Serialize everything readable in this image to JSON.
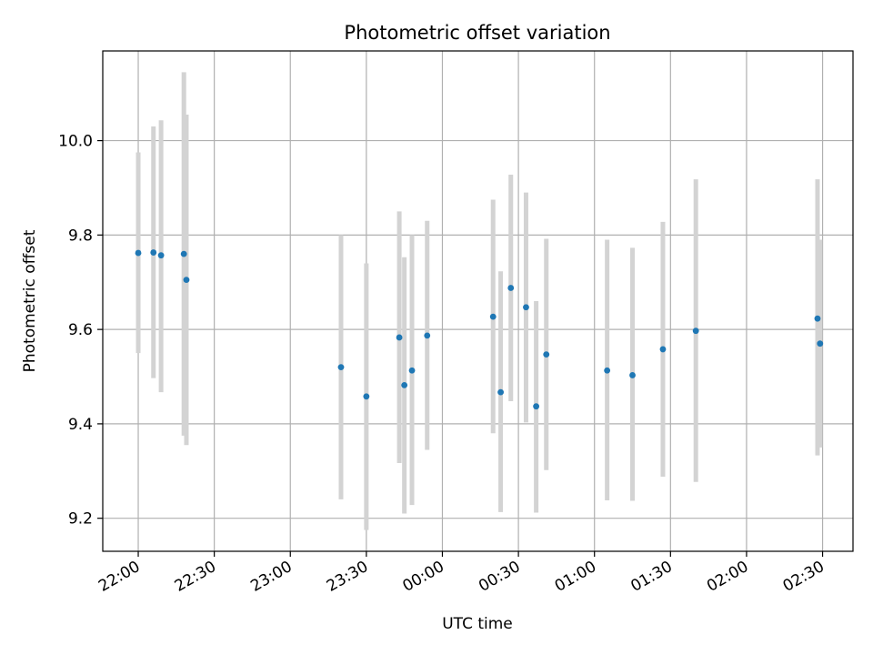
{
  "chart_data": {
    "type": "scatter",
    "title": "Photometric offset variation",
    "xlabel": "UTC time",
    "ylabel": "Photometric offset",
    "xlim": [
      "21:46",
      "02:42"
    ],
    "ylim": [
      9.13,
      10.19
    ],
    "x_ticks": [
      "22:00",
      "22:30",
      "23:00",
      "23:30",
      "00:00",
      "00:30",
      "01:00",
      "01:30",
      "02:00",
      "02:30"
    ],
    "y_ticks": [
      "9.2",
      "9.4",
      "9.6",
      "9.8",
      "10.0"
    ],
    "grid": true,
    "series": [
      {
        "marker_color": "#1f77b4",
        "errorbar_color": "#d3d3d3",
        "points": [
          {
            "x": "22:00",
            "y": 9.762,
            "low": 9.55,
            "high": 9.975
          },
          {
            "x": "22:06",
            "y": 9.763,
            "low": 9.497,
            "high": 10.03
          },
          {
            "x": "22:09",
            "y": 9.757,
            "low": 9.467,
            "high": 10.043
          },
          {
            "x": "22:18",
            "y": 9.76,
            "low": 9.375,
            "high": 10.145
          },
          {
            "x": "22:19",
            "y": 9.705,
            "low": 9.355,
            "high": 10.055
          },
          {
            "x": "23:20",
            "y": 9.52,
            "low": 9.24,
            "high": 9.8
          },
          {
            "x": "23:30",
            "y": 9.458,
            "low": 9.175,
            "high": 9.74
          },
          {
            "x": "23:43",
            "y": 9.583,
            "low": 9.317,
            "high": 9.85
          },
          {
            "x": "23:45",
            "y": 9.482,
            "low": 9.21,
            "high": 9.753
          },
          {
            "x": "23:48",
            "y": 9.513,
            "low": 9.228,
            "high": 9.8
          },
          {
            "x": "23:54",
            "y": 9.587,
            "low": 9.345,
            "high": 9.83
          },
          {
            "x": "00:20",
            "y": 9.627,
            "low": 9.38,
            "high": 9.875
          },
          {
            "x": "00:23",
            "y": 9.467,
            "low": 9.213,
            "high": 9.723
          },
          {
            "x": "00:27",
            "y": 9.688,
            "low": 9.448,
            "high": 9.928
          },
          {
            "x": "00:33",
            "y": 9.647,
            "low": 9.403,
            "high": 9.89
          },
          {
            "x": "00:37",
            "y": 9.437,
            "low": 9.212,
            "high": 9.66
          },
          {
            "x": "00:41",
            "y": 9.547,
            "low": 9.302,
            "high": 9.792
          },
          {
            "x": "01:05",
            "y": 9.513,
            "low": 9.238,
            "high": 9.79
          },
          {
            "x": "01:15",
            "y": 9.503,
            "low": 9.237,
            "high": 9.773
          },
          {
            "x": "01:27",
            "y": 9.558,
            "low": 9.288,
            "high": 9.828
          },
          {
            "x": "01:40",
            "y": 9.597,
            "low": 9.277,
            "high": 9.918
          },
          {
            "x": "02:28",
            "y": 9.623,
            "low": 9.333,
            "high": 9.918
          },
          {
            "x": "02:29",
            "y": 9.57,
            "low": 9.35,
            "high": 9.79
          }
        ]
      }
    ]
  }
}
